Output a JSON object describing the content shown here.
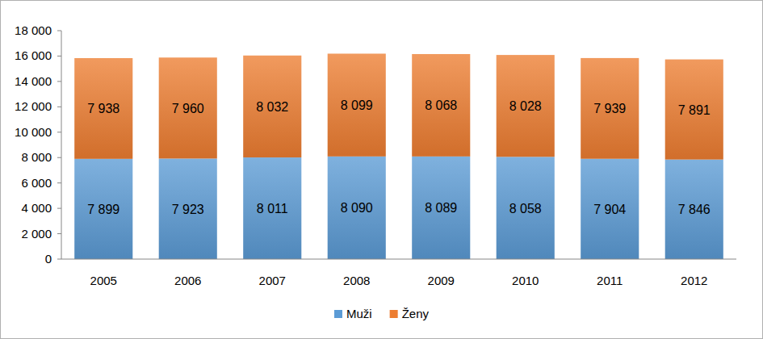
{
  "chart_data": {
    "type": "bar",
    "stacked": true,
    "data_labels": true,
    "grid": false,
    "legend": "bottom",
    "categories": [
      "2005",
      "2006",
      "2007",
      "2008",
      "2009",
      "2010",
      "2011",
      "2012"
    ],
    "series": [
      {
        "name": "Muži",
        "color": "#5b9bd5",
        "values": [
          7899,
          7923,
          8011,
          8090,
          8089,
          8058,
          7904,
          7846
        ],
        "value_labels": [
          "7 899",
          "7 923",
          "8 011",
          "8 090",
          "8 089",
          "8 058",
          "7 904",
          "7 846"
        ]
      },
      {
        "name": "Ženy",
        "color": "#ed7d31",
        "values": [
          7938,
          7960,
          8032,
          8099,
          8068,
          8028,
          7939,
          7891
        ],
        "value_labels": [
          "7 938",
          "7 960",
          "8 032",
          "8 099",
          "8 068",
          "8 028",
          "7 939",
          "7 891"
        ]
      }
    ],
    "ylim": [
      0,
      18000
    ],
    "yticks": [
      0,
      {
        "value": 2000,
        "label": "2 000"
      },
      {
        "value": 4000,
        "label": "4 000"
      },
      {
        "value": 6000,
        "label": "6 000"
      },
      {
        "value": 8000,
        "label": "8 000"
      },
      {
        "value": 10000,
        "label": "10 000"
      },
      {
        "value": 12000,
        "label": "12 000"
      },
      {
        "value": 14000,
        "label": "14 000"
      },
      {
        "value": 16000,
        "label": "16 000"
      },
      {
        "value": 18000,
        "label": "18 000"
      }
    ]
  }
}
